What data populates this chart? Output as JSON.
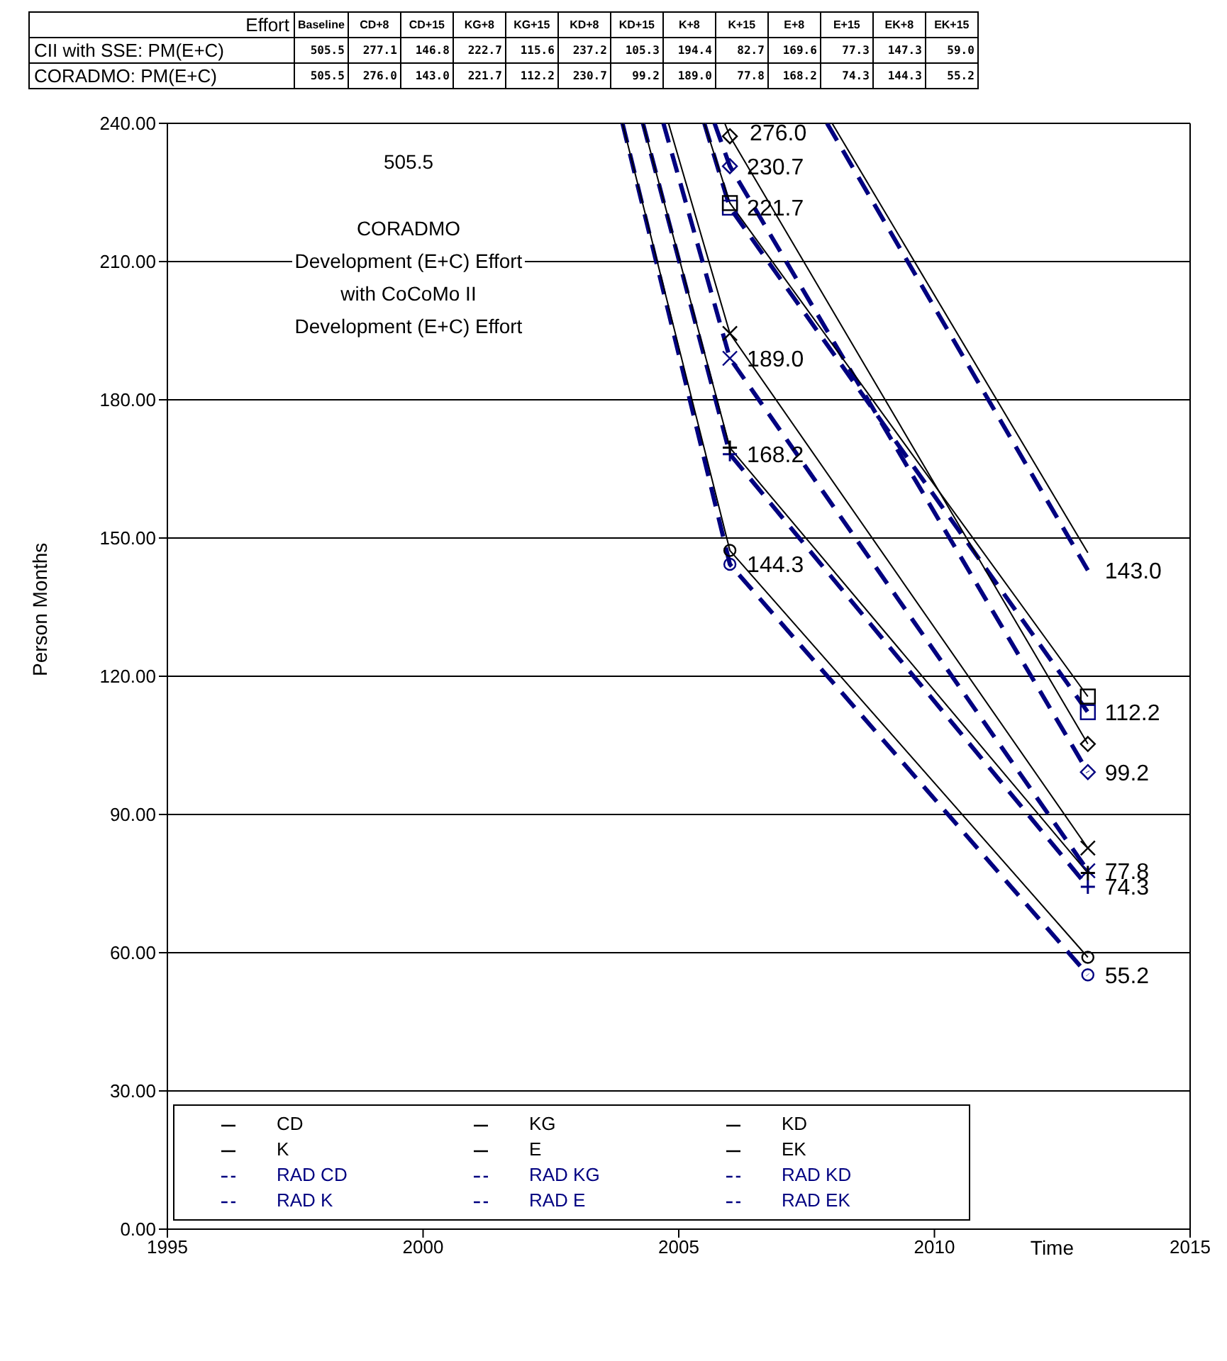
{
  "chart_data": {
    "type": "line",
    "xlabel": "Time",
    "ylabel": "Person Months",
    "annotations": [
      "505.5",
      "CORADMO",
      "Development (E+C) Effort",
      "with CoCoMo II",
      "Development (E+C) Effort",
      "276.0",
      "Effort",
      "Baseline",
      "CD+8",
      "CD+15",
      "KG+8",
      "KG+15",
      "KD+8",
      "KD+15",
      "K+8",
      "K+15",
      "E+8",
      "E+15",
      "EK+8",
      "EK+15",
      "CII with SSE: PM(E+C)",
      "505.5",
      "277.1",
      "146.8",
      "222.7",
      "115.6",
      "237.2",
      "105.3",
      "194.4",
      "82.7",
      "169.6",
      "77.3",
      "147.3",
      "59.0",
      "CORADMO: PM(E+C)",
      "505.5",
      "276.0",
      "143.0",
      "221.7",
      "112.2",
      "230.7",
      "99.2",
      "189.0",
      "77.8",
      "168.2",
      "74.3",
      "144.3",
      "55.2"
    ],
    "xlim": [
      1995,
      2015
    ],
    "xticks": [
      1995,
      2000,
      2005,
      2010,
      2015
    ],
    "ylim": [
      0,
      240
    ],
    "yticks": [
      {
        "value": 0,
        "label": "0.00"
      },
      {
        "value": 30,
        "label": "30.00"
      },
      {
        "value": 60,
        "label": "60.00"
      },
      {
        "value": 90,
        "label": "90.00"
      },
      {
        "value": 120,
        "label": "120.00"
      },
      {
        "value": 150,
        "label": "150.00"
      },
      {
        "value": 180,
        "label": "180.00"
      },
      {
        "value": 210,
        "label": "210.00"
      },
      {
        "value": 240,
        "label": "240.00"
      }
    ],
    "grid": "y",
    "legend": "bottom left",
    "series": [
      {
        "name": "CD",
        "color": "#000000",
        "x": [
          2008.0,
          2013
        ],
        "values": [
          240,
          146.8
        ],
        "marker": "none",
        "line_style": "solid"
      },
      {
        "name": "KG",
        "color": "#000000",
        "x": [
          2005.5,
          2006,
          2013
        ],
        "values": [
          240,
          222.7,
          115.6
        ],
        "marker": "square",
        "line_style": "solid"
      },
      {
        "name": "KD",
        "color": "#000000",
        "x": [
          2005.9,
          2006,
          2013
        ],
        "values": [
          240,
          237.2,
          105.3
        ],
        "marker": "diamond",
        "line_style": "solid"
      },
      {
        "name": "K",
        "color": "#000000",
        "x": [
          2004.8,
          2006,
          2013
        ],
        "values": [
          240,
          194.4,
          82.7
        ],
        "marker": "x",
        "line_style": "solid"
      },
      {
        "name": "E",
        "color": "#000000",
        "x": [
          2004.3,
          2006,
          2013
        ],
        "values": [
          240,
          169.6,
          77.3
        ],
        "marker": "cross",
        "line_style": "solid"
      },
      {
        "name": "EK",
        "color": "#000000",
        "x": [
          2003.9,
          2006,
          2013
        ],
        "values": [
          240,
          147.3,
          59.0
        ],
        "marker": "circle",
        "line_style": "solid"
      },
      {
        "name": "RAD CD",
        "color": "#000080",
        "x": [
          2007.9,
          2013
        ],
        "values": [
          240,
          143.0
        ],
        "marker": "none",
        "line_style": "dashed",
        "value_labels": [
          null,
          "143.0"
        ]
      },
      {
        "name": "RAD KG",
        "color": "#000080",
        "x": [
          2005.5,
          2006,
          2013
        ],
        "values": [
          240,
          221.7,
          112.2
        ],
        "marker": "square",
        "line_style": "dashed",
        "value_labels": [
          null,
          "221.7",
          "112.2"
        ]
      },
      {
        "name": "RAD KD",
        "color": "#000080",
        "x": [
          2005.7,
          2006,
          2013
        ],
        "values": [
          240,
          230.7,
          99.2
        ],
        "marker": "diamond",
        "line_style": "dashed",
        "value_labels": [
          null,
          "230.7",
          "99.2"
        ]
      },
      {
        "name": "RAD K",
        "color": "#000080",
        "x": [
          2004.7,
          2006,
          2013
        ],
        "values": [
          240,
          189.0,
          77.8
        ],
        "marker": "x",
        "line_style": "dashed",
        "value_labels": [
          null,
          "189.0",
          "77.8"
        ]
      },
      {
        "name": "RAD E",
        "color": "#000080",
        "x": [
          2004.3,
          2006,
          2013
        ],
        "values": [
          240,
          168.2,
          74.3
        ],
        "marker": "cross",
        "line_style": "dashed",
        "value_labels": [
          null,
          "168.2",
          "74.3"
        ]
      },
      {
        "name": "RAD EK",
        "color": "#000080",
        "x": [
          2003.9,
          2006,
          2013
        ],
        "values": [
          240,
          144.3,
          55.2
        ],
        "marker": "circle",
        "line_style": "dashed",
        "value_labels": [
          null,
          "144.3",
          "55.2"
        ]
      }
    ]
  }
}
